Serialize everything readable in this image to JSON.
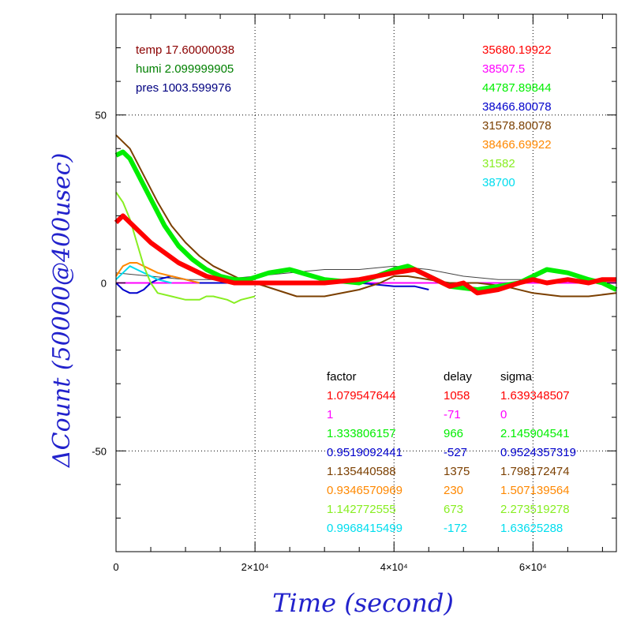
{
  "chart_data": {
    "type": "line",
    "xlabel": "Time (second)",
    "ylabel": "ΔCount (50000@400usec)",
    "xlim": [
      0,
      72000
    ],
    "ylim": [
      -80,
      80
    ],
    "x_ticks": [
      {
        "value": 0,
        "label": "0"
      },
      {
        "value": 20000,
        "label": "2×10⁴"
      },
      {
        "value": 40000,
        "label": "4×10⁴"
      },
      {
        "value": 60000,
        "label": "6×10⁴"
      }
    ],
    "y_ticks": [
      {
        "value": 50,
        "label": "50"
      },
      {
        "value": 0,
        "label": "0"
      },
      {
        "value": -50,
        "label": "-50"
      }
    ],
    "grid": true,
    "env_labels": [
      {
        "text": "temp 17.60000038",
        "color": "#8b0000"
      },
      {
        "text": "humi 2.099999905",
        "color": "#008000"
      },
      {
        "text": "pres 1003.599976",
        "color": "#000080"
      }
    ],
    "series": [
      {
        "name": "35680.19922",
        "color": "#ff0000",
        "factor": "1.079547644",
        "delay": "1058",
        "sigma": "1.639348507",
        "x": [
          0,
          1000,
          3000,
          5000,
          7000,
          9000,
          11000,
          13000,
          15000,
          17000,
          20000,
          25000,
          30000,
          35000,
          40000,
          43000,
          45000,
          46000,
          48000,
          50000,
          52000,
          55000,
          58000,
          60000,
          62000,
          65000,
          68000,
          70000,
          72000
        ],
        "y": [
          18,
          20,
          16,
          12,
          9,
          6,
          4,
          2,
          1,
          0,
          0,
          0,
          0,
          1,
          3,
          4,
          2,
          1,
          -1,
          0,
          -3,
          -2,
          0,
          1,
          0,
          1,
          0,
          1,
          1
        ]
      },
      {
        "name": "38507.5",
        "color": "#ff00ff",
        "factor": "1",
        "delay": "-71",
        "sigma": "0",
        "x": [
          0,
          10000,
          20000,
          30000,
          40000,
          50000,
          60000,
          72000
        ],
        "y": [
          0,
          0,
          0,
          0,
          0,
          0,
          0,
          0
        ]
      },
      {
        "name": "44787.89844",
        "color": "#00ee00",
        "factor": "1.333806157",
        "delay": "966",
        "sigma": "2.145904541",
        "x": [
          0,
          1000,
          2000,
          3000,
          5000,
          7000,
          9000,
          11000,
          13000,
          15000,
          17000,
          19000,
          22000,
          25000,
          30000,
          35000,
          40000,
          42000,
          45000,
          48000,
          52000,
          55000,
          58000,
          60000,
          62000,
          65000,
          68000,
          70000,
          72000
        ],
        "y": [
          38,
          39,
          37,
          33,
          25,
          17,
          11,
          7,
          4,
          2,
          1,
          1,
          3,
          4,
          1,
          0,
          4,
          5,
          2,
          -1,
          -2,
          -1,
          0,
          2,
          4,
          3,
          1,
          0,
          -2
        ]
      },
      {
        "name": "38466.80078",
        "color": "#0000cc",
        "factor": "0.9519092441",
        "delay": "-527",
        "sigma": "0.9524357319",
        "x": [
          0,
          1000,
          2000,
          3000,
          4000,
          5000,
          6000,
          8000,
          10000,
          12000,
          15000,
          20000,
          25000,
          30000,
          35000,
          40000,
          43000,
          45000
        ],
        "y": [
          0,
          -2,
          -3,
          -3,
          -2,
          0,
          1,
          2,
          1,
          0,
          0,
          0,
          0,
          0,
          0,
          -1,
          -1,
          -2
        ]
      },
      {
        "name": "31578.80078",
        "color": "#7b3f00",
        "factor": "1.135440588",
        "delay": "1375",
        "sigma": "1.798172474",
        "x": [
          0,
          2000,
          4000,
          6000,
          8000,
          10000,
          12000,
          14000,
          16000,
          18000,
          20000,
          23000,
          26000,
          30000,
          35000,
          38000,
          40000,
          42000,
          45000,
          48000,
          52000,
          56000,
          60000,
          64000,
          68000,
          72000
        ],
        "y": [
          44,
          40,
          32,
          24,
          17,
          12,
          8,
          5,
          3,
          1,
          0,
          -2,
          -4,
          -4,
          -2,
          0,
          2,
          2,
          1,
          0,
          0,
          -1,
          -3,
          -4,
          -4,
          -3
        ]
      },
      {
        "name": "38466.69922",
        "color": "#ff8800",
        "factor": "0.9346570969",
        "delay": "230",
        "sigma": "1.507139564",
        "x": [
          0,
          1000,
          2000,
          3000,
          4000,
          6000,
          8000,
          10000,
          12000
        ],
        "y": [
          2,
          5,
          6,
          6,
          5,
          3,
          2,
          1,
          0
        ]
      },
      {
        "name": "31582",
        "color": "#88ee22",
        "factor": "1.142772555",
        "delay": "673",
        "sigma": "2.273519278",
        "x": [
          0,
          1000,
          2000,
          3000,
          4000,
          5000,
          6000,
          8000,
          10000,
          12000,
          13000,
          14000,
          16000,
          17000,
          18000,
          20000
        ],
        "y": [
          27,
          24,
          19,
          12,
          5,
          0,
          -3,
          -4,
          -5,
          -5,
          -4,
          -4,
          -5,
          -6,
          -5,
          -4
        ]
      },
      {
        "name": "38700",
        "color": "#00ddee",
        "factor": "0.9968415499",
        "delay": "-172",
        "sigma": "1.63625288",
        "x": [
          0,
          1000,
          2000,
          3000,
          4000,
          6000,
          8000
        ],
        "y": [
          1,
          3,
          5,
          4,
          3,
          1,
          0
        ]
      }
    ],
    "extra_lines": [
      {
        "color": "#444444",
        "x": [
          0,
          5000,
          10000,
          15000,
          20000,
          25000,
          30000,
          35000,
          40000,
          45000,
          50000,
          55000,
          60000,
          65000,
          70000,
          72000
        ],
        "y": [
          3,
          2,
          1,
          1,
          2,
          3,
          4,
          4,
          5,
          4,
          2,
          1,
          1,
          0,
          0,
          0
        ]
      }
    ],
    "table_headers": {
      "factor": "factor",
      "delay": "delay",
      "sigma": "sigma"
    }
  }
}
